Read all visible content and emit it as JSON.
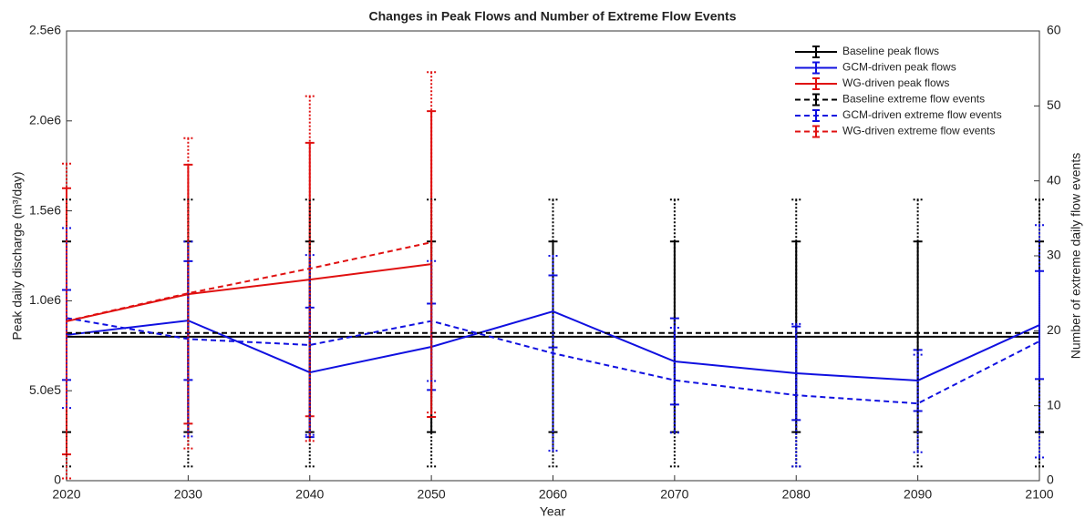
{
  "chart_data": {
    "type": "line",
    "title": "Changes in Peak Flows and Number of Extreme Flow Events",
    "x_label": "Year",
    "y_label": "Peak daily discharge (m³/day)",
    "y2_label": "Number of extreme daily flow events",
    "x": [
      2020,
      2030,
      2040,
      2050,
      2060,
      2070,
      2080,
      2090,
      2100
    ],
    "xlim": [
      2020,
      2100
    ],
    "xticks": [
      2020,
      2030,
      2040,
      2050,
      2060,
      2070,
      2080,
      2090,
      2100
    ],
    "ylim": [
      0,
      2500000
    ],
    "yticks": [
      0,
      {
        "value": 500000,
        "label": "5.0e5"
      },
      {
        "value": 1000000,
        "label": "1.0e6"
      },
      {
        "value": 1500000,
        "label": "1.5e6"
      },
      {
        "value": 2000000,
        "label": "2.0e6"
      },
      {
        "value": 2500000,
        "label": "2.5e6"
      }
    ],
    "y2lim": [
      0,
      60
    ],
    "y2ticks": [
      0,
      10,
      20,
      30,
      40,
      50,
      60
    ],
    "legend": "top-right",
    "series": [
      {
        "name": "Baseline peak flows",
        "color": "#000000",
        "linestyle": "solid",
        "values": [
          800000,
          800000,
          800000,
          800000,
          800000,
          800000,
          800000,
          800000,
          800000
        ],
        "errors": [
          530000,
          530000,
          530000,
          530000,
          530000,
          530000,
          530000,
          530000,
          530000
        ]
      },
      {
        "name": "GCM-driven peak flows",
        "color": "#1010e0",
        "linestyle": "solid",
        "values": [
          810000,
          890000,
          602000,
          744000,
          941000,
          663000,
          597000,
          557000,
          865000
        ],
        "errors": [
          250000,
          330000,
          360000,
          240000,
          200000,
          240000,
          260000,
          170000,
          300000
        ]
      },
      {
        "name": "WG-driven peak flows",
        "color": "#e01010",
        "linestyle": "solid",
        "values": [
          886000,
          1037000,
          1118000,
          1204000,
          null,
          null,
          null,
          null,
          null
        ],
        "errors": [
          740000,
          720000,
          760000,
          850000,
          null,
          null,
          null,
          null,
          null
        ]
      },
      {
        "name": "Baseline extreme flow events",
        "color": "#000000",
        "linestyle": "dashed",
        "axis": "y2",
        "values": [
          19.7,
          19.7,
          19.7,
          19.7,
          19.7,
          19.7,
          19.7,
          19.7,
          19.7
        ],
        "errors": [
          17.8,
          17.8,
          17.8,
          17.8,
          17.8,
          17.8,
          17.8,
          17.8,
          17.8
        ]
      },
      {
        "name": "GCM-driven extreme flow events",
        "color": "#1010e0",
        "linestyle": "dashed",
        "axis": "y2",
        "values": [
          21.7,
          18.9,
          18.1,
          21.3,
          17.0,
          13.4,
          11.4,
          10.3,
          18.6
        ],
        "errors": [
          12,
          13,
          12,
          8,
          13,
          7,
          9.5,
          6.5,
          15.5
        ]
      },
      {
        "name": "WG-driven extreme flow events",
        "color": "#e01010",
        "linestyle": "dashed",
        "axis": "y2",
        "values": [
          21.3,
          25.0,
          28.3,
          31.8,
          null,
          null,
          null,
          null,
          null
        ],
        "errors": [
          21,
          20.7,
          23,
          22.7,
          null,
          null,
          null,
          null,
          null
        ]
      }
    ]
  }
}
